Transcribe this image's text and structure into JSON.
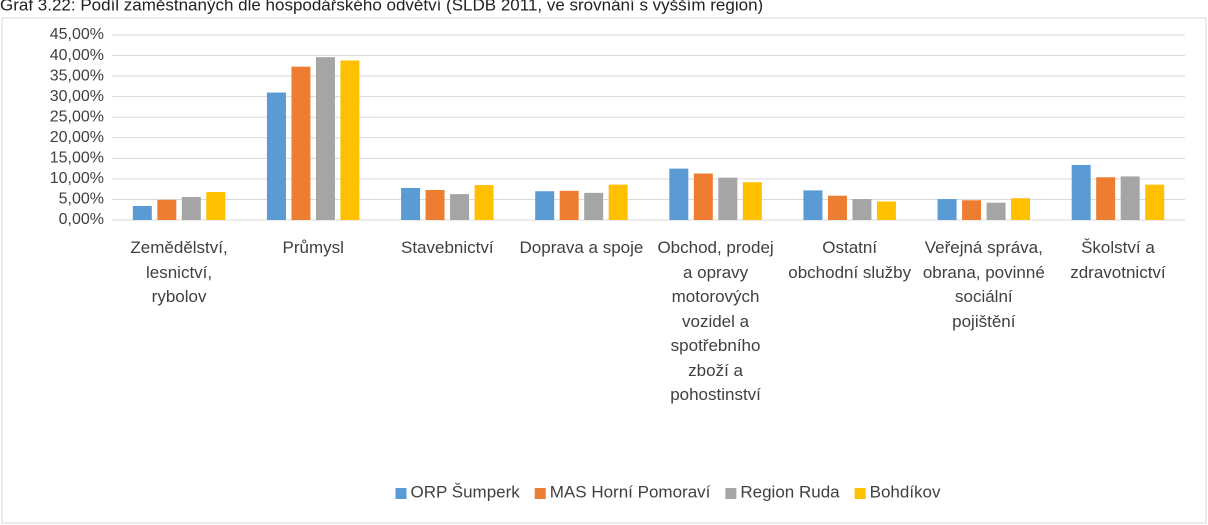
{
  "chart_data": {
    "type": "bar",
    "title": "Graf 3.22: Podíl zaměstnaných dle hospodářského odvětví (SLDB 2011, ve srovnání s vyšším region)",
    "categories": [
      "Zemědělství, lesnictví, rybolov",
      "Průmysl",
      "Stavebnictví",
      "Doprava a spoje",
      "Obchod, prodej a opravy motorových vozidel a spotřebního zboží a pohostinství",
      "Ostatní obchodní služby",
      "Veřejná správa, obrana, povinné sociální pojištění",
      "Školství a zdravotnictví"
    ],
    "series": [
      {
        "name": "ORP Šumperk",
        "color": "#5b9bd5",
        "values": [
          3.4,
          31.0,
          7.8,
          7.0,
          12.5,
          7.2,
          5.1,
          13.4
        ]
      },
      {
        "name": "MAS Horní Pomoraví",
        "color": "#ed7d31",
        "values": [
          4.9,
          37.3,
          7.3,
          7.1,
          11.3,
          5.9,
          4.8,
          10.4
        ]
      },
      {
        "name": "Region Ruda",
        "color": "#a5a5a5",
        "values": [
          5.6,
          39.6,
          6.3,
          6.6,
          10.3,
          5.1,
          4.2,
          10.6
        ]
      },
      {
        "name": "Bohdíkov",
        "color": "#ffc000",
        "values": [
          6.8,
          38.8,
          8.5,
          8.6,
          9.2,
          4.5,
          5.3,
          8.6
        ]
      }
    ],
    "ylim": [
      0,
      45
    ],
    "yticks": [
      {
        "value": 0,
        "label": "0,00%"
      },
      {
        "value": 5,
        "label": "5,00%"
      },
      {
        "value": 10,
        "label": "10,00%"
      },
      {
        "value": 15,
        "label": "15,00%"
      },
      {
        "value": 20,
        "label": "20,00%"
      },
      {
        "value": 25,
        "label": "25,00%"
      },
      {
        "value": 30,
        "label": "30,00%"
      },
      {
        "value": 35,
        "label": "35,00%"
      },
      {
        "value": 40,
        "label": "40,00%"
      },
      {
        "value": 45,
        "label": "45,00%"
      }
    ],
    "grid": true,
    "legend": "bottom"
  }
}
